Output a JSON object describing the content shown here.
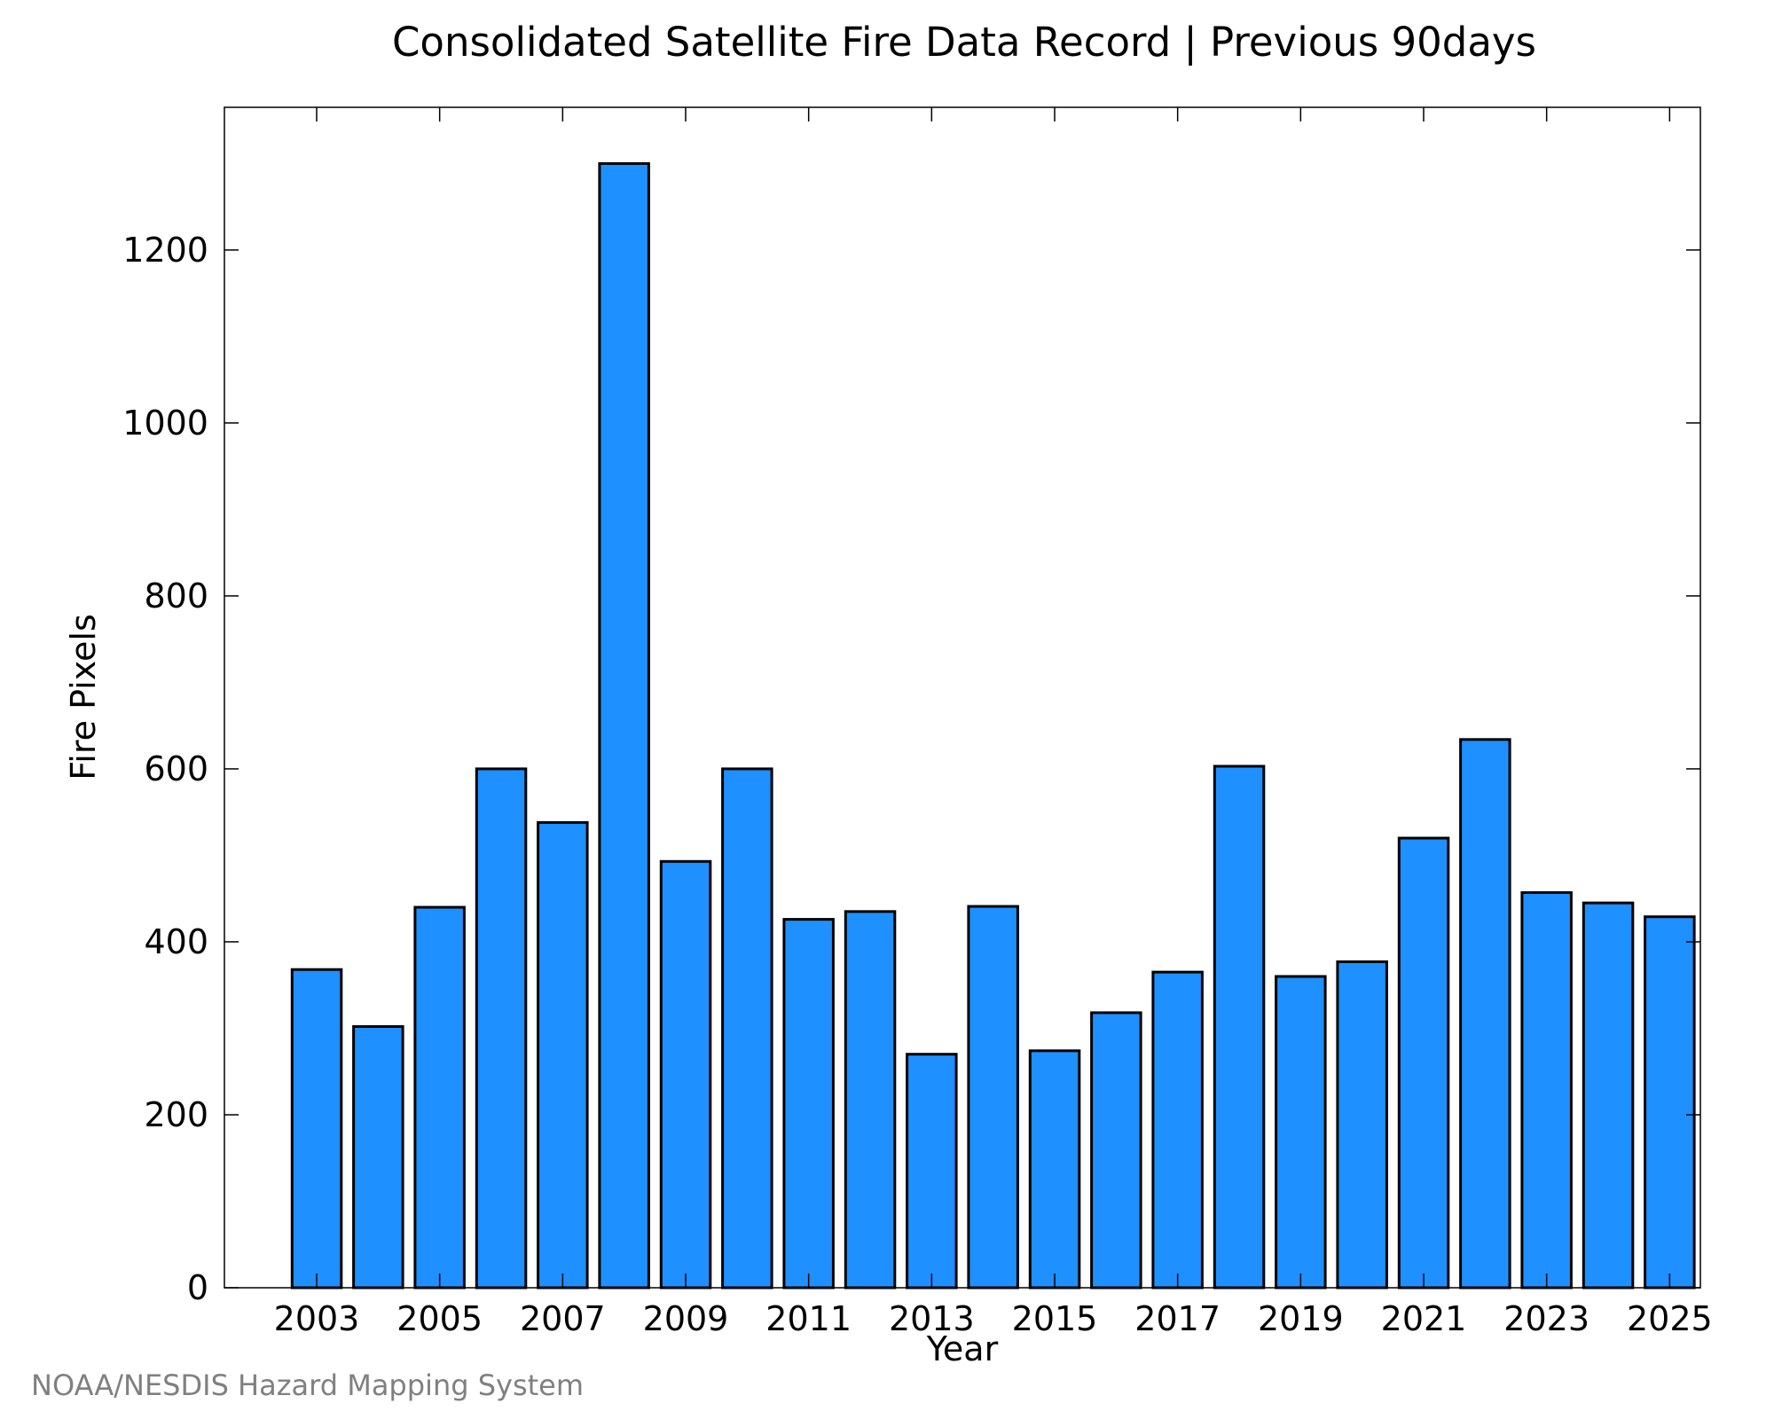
{
  "chart_data": {
    "type": "bar",
    "title": "Consolidated Satellite Fire Data Record | Previous 90days",
    "xlabel": "Year",
    "ylabel": "Fire Pixels",
    "credit": "NOAA/NESDIS Hazard Mapping System",
    "categories": [
      "2003",
      "2004",
      "2005",
      "2006",
      "2007",
      "2008",
      "2009",
      "2010",
      "2011",
      "2012",
      "2013",
      "2014",
      "2015",
      "2016",
      "2017",
      "2018",
      "2019",
      "2020",
      "2021",
      "2022",
      "2023",
      "2024",
      "2025"
    ],
    "values": [
      368,
      302,
      440,
      600,
      538,
      1300,
      493,
      600,
      426,
      435,
      270,
      441,
      274,
      318,
      365,
      603,
      360,
      377,
      520,
      634,
      457,
      445,
      429
    ],
    "x_tick_labels": [
      "2003",
      "2005",
      "2007",
      "2009",
      "2011",
      "2013",
      "2015",
      "2017",
      "2019",
      "2021",
      "2023",
      "2025"
    ],
    "y_tick_labels": [
      "0",
      "200",
      "400",
      "600",
      "800",
      "1000",
      "1200"
    ],
    "y_ticks": [
      0,
      200,
      400,
      600,
      800,
      1000,
      1200
    ],
    "ylim": [
      0,
      1365
    ],
    "xlim": [
      2001.5,
      2025.5
    ],
    "grid": false,
    "legend": "none",
    "bar_color": "#1e90ff",
    "bar_edge_color": "#000000"
  }
}
